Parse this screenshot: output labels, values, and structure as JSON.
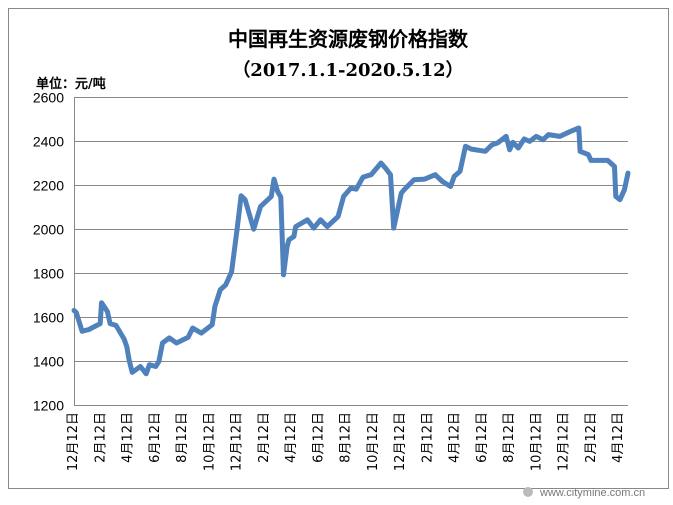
{
  "chart_data": {
    "type": "line",
    "title": "中国再生资源废钢价格指数",
    "subtitle": "（2017.1.1-2020.5.12）",
    "ylabel": "单位：元/吨",
    "xlabel": "",
    "ylim": [
      1200,
      2600
    ],
    "yticks": [
      1200,
      1400,
      1600,
      1800,
      2000,
      2200,
      2400,
      2600
    ],
    "xlim": [
      "2017-01-01",
      "2020-05-12"
    ],
    "xtick_labels": [
      "12月12日",
      "2月12日",
      "4月12日",
      "6月12日",
      "8月12日",
      "10月12日",
      "12月12日",
      "2月12日",
      "4月12日",
      "6月12日",
      "8月12日",
      "10月12日",
      "12月12日",
      "2月12日",
      "4月12日",
      "6月12日",
      "8月12日",
      "10月12日",
      "12月12日",
      "2月12日",
      "4月12日"
    ],
    "grid": true,
    "line_color": "#4F81BD",
    "series": [
      {
        "points": [
          [
            "2017-01-01",
            1630
          ],
          [
            "2017-01-06",
            1620
          ],
          [
            "2017-01-19",
            1535
          ],
          [
            "2017-02-03",
            1543
          ],
          [
            "2017-02-28",
            1570
          ],
          [
            "2017-03-03",
            1665
          ],
          [
            "2017-03-16",
            1625
          ],
          [
            "2017-03-22",
            1570
          ],
          [
            "2017-04-04",
            1562
          ],
          [
            "2017-04-22",
            1500
          ],
          [
            "2017-04-28",
            1465
          ],
          [
            "2017-05-03",
            1405
          ],
          [
            "2017-05-10",
            1348
          ],
          [
            "2017-05-28",
            1375
          ],
          [
            "2017-06-10",
            1342
          ],
          [
            "2017-06-17",
            1383
          ],
          [
            "2017-07-01",
            1375
          ],
          [
            "2017-07-08",
            1398
          ],
          [
            "2017-07-16",
            1482
          ],
          [
            "2017-07-31",
            1505
          ],
          [
            "2017-08-16",
            1482
          ],
          [
            "2017-09-11",
            1508
          ],
          [
            "2017-09-21",
            1550
          ],
          [
            "2017-10-10",
            1527
          ],
          [
            "2017-11-03",
            1565
          ],
          [
            "2017-11-09",
            1648
          ],
          [
            "2017-11-21",
            1724
          ],
          [
            "2017-12-03",
            1746
          ],
          [
            "2017-12-16",
            1806
          ],
          [
            "2017-12-28",
            1996
          ],
          [
            "2018-01-06",
            2151
          ],
          [
            "2018-01-15",
            2133
          ],
          [
            "2018-02-03",
            1999
          ],
          [
            "2018-02-18",
            2102
          ],
          [
            "2018-03-14",
            2148
          ],
          [
            "2018-03-20",
            2227
          ],
          [
            "2018-03-28",
            2171
          ],
          [
            "2018-04-04",
            2145
          ],
          [
            "2018-04-10",
            1792
          ],
          [
            "2018-04-18",
            1920
          ],
          [
            "2018-04-22",
            1951
          ],
          [
            "2018-05-03",
            1966
          ],
          [
            "2018-05-07",
            2011
          ],
          [
            "2018-06-02",
            2042
          ],
          [
            "2018-06-16",
            2004
          ],
          [
            "2018-07-01",
            2042
          ],
          [
            "2018-07-16",
            2011
          ],
          [
            "2018-08-09",
            2057
          ],
          [
            "2018-08-21",
            2148
          ],
          [
            "2018-09-06",
            2186
          ],
          [
            "2018-09-18",
            2181
          ],
          [
            "2018-10-03",
            2236
          ],
          [
            "2018-10-21",
            2247
          ],
          [
            "2018-11-12",
            2300
          ],
          [
            "2018-11-22",
            2277
          ],
          [
            "2018-12-03",
            2247
          ],
          [
            "2018-12-10",
            2004
          ],
          [
            "2018-12-27",
            2163
          ],
          [
            "2019-01-02",
            2178
          ],
          [
            "2019-01-24",
            2224
          ],
          [
            "2019-02-17",
            2227
          ],
          [
            "2019-03-12",
            2247
          ],
          [
            "2019-03-28",
            2216
          ],
          [
            "2019-04-15",
            2193
          ],
          [
            "2019-04-23",
            2239
          ],
          [
            "2019-05-06",
            2262
          ],
          [
            "2019-05-18",
            2376
          ],
          [
            "2019-05-31",
            2363
          ],
          [
            "2019-07-01",
            2353
          ],
          [
            "2019-07-16",
            2383
          ],
          [
            "2019-07-28",
            2391
          ],
          [
            "2019-08-16",
            2421
          ],
          [
            "2019-08-24",
            2360
          ],
          [
            "2019-08-31",
            2394
          ],
          [
            "2019-09-12",
            2368
          ],
          [
            "2019-09-25",
            2409
          ],
          [
            "2019-10-07",
            2398
          ],
          [
            "2019-10-22",
            2421
          ],
          [
            "2019-11-06",
            2406
          ],
          [
            "2019-11-18",
            2429
          ],
          [
            "2019-12-13",
            2421
          ],
          [
            "2020-01-06",
            2444
          ],
          [
            "2020-01-24",
            2459
          ],
          [
            "2020-01-27",
            2353
          ],
          [
            "2020-02-14",
            2338
          ],
          [
            "2020-02-20",
            2312
          ],
          [
            "2020-03-28",
            2312
          ],
          [
            "2020-04-12",
            2284
          ],
          [
            "2020-04-15",
            2148
          ],
          [
            "2020-04-24",
            2133
          ],
          [
            "2020-05-04",
            2178
          ],
          [
            "2020-05-12",
            2254
          ]
        ]
      }
    ]
  },
  "watermark": "www.citymine.com.cn"
}
